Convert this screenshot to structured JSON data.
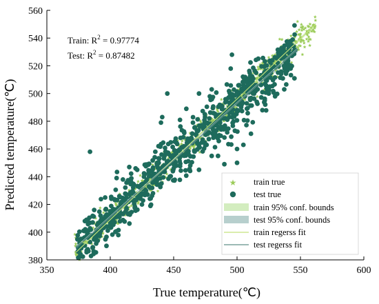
{
  "chart_data": {
    "type": "scatter",
    "xlabel": "True temperature(℃)",
    "ylabel": "Predicted temperature(℃)",
    "xlim": [
      350,
      600
    ],
    "ylim": [
      380,
      560
    ],
    "xticks": [
      350,
      400,
      450,
      500,
      550,
      600
    ],
    "yticks": [
      380,
      400,
      420,
      440,
      460,
      480,
      500,
      520,
      540,
      560
    ],
    "grid": false,
    "legend_position": "bottom-right",
    "annotations": {
      "train_r2_prefix": "Train: R",
      "train_r2_value": " = 0.97774",
      "test_r2_prefix": "Test: R",
      "test_r2_value": " = 0.87482",
      "superscript": "2"
    },
    "legend": {
      "train_true": "train true",
      "test_true": "test true",
      "train_bounds": "train 95% conf. bounds",
      "test_bounds": "test 95% conf. bounds",
      "train_fit": "train regerss fit",
      "test_fit": "test regerss fit"
    },
    "series": [
      {
        "name": "train true",
        "marker": "star",
        "color": "#9ccc5a",
        "r2": 0.97774,
        "x_range": [
          372,
          562
        ],
        "noise_sd": 5,
        "points": [
          [
            375,
            386
          ],
          [
            378,
            389
          ],
          [
            382,
            392
          ],
          [
            386,
            395
          ],
          [
            390,
            400
          ],
          [
            395,
            404
          ],
          [
            400,
            405
          ],
          [
            405,
            410
          ],
          [
            410,
            414
          ],
          [
            415,
            418
          ],
          [
            420,
            420
          ],
          [
            425,
            426
          ],
          [
            430,
            428
          ],
          [
            435,
            434
          ],
          [
            440,
            438
          ],
          [
            445,
            447
          ],
          [
            450,
            450
          ],
          [
            455,
            452
          ],
          [
            460,
            462
          ],
          [
            465,
            466
          ],
          [
            470,
            468
          ],
          [
            475,
            474
          ],
          [
            480,
            482
          ],
          [
            485,
            487
          ],
          [
            490,
            488
          ],
          [
            495,
            494
          ],
          [
            500,
            502
          ],
          [
            505,
            507
          ],
          [
            510,
            509
          ],
          [
            515,
            514
          ],
          [
            520,
            522
          ],
          [
            525,
            526
          ],
          [
            530,
            528
          ],
          [
            535,
            534
          ],
          [
            540,
            537
          ],
          [
            545,
            543
          ],
          [
            550,
            543
          ],
          [
            555,
            545
          ],
          [
            560,
            546
          ]
        ]
      },
      {
        "name": "test true",
        "marker": "circle",
        "color": "#1e6b5c",
        "r2": 0.87482,
        "x_range": [
          374,
          546
        ],
        "noise_sd": 9,
        "points": [
          [
            384,
            458
          ],
          [
            380,
            408
          ],
          [
            392,
            404
          ],
          [
            396,
            425
          ],
          [
            405,
            439
          ],
          [
            420,
            446
          ],
          [
            440,
            479
          ],
          [
            441,
            483
          ],
          [
            455,
            481
          ],
          [
            470,
            445
          ],
          [
            480,
            455
          ],
          [
            476,
            463
          ],
          [
            490,
            449
          ],
          [
            500,
            450
          ],
          [
            511,
            471
          ],
          [
            520,
            488
          ],
          [
            515,
            515
          ],
          [
            520,
            501
          ],
          [
            540,
            522
          ],
          [
            530,
            498
          ],
          [
            445,
            500
          ],
          [
            470,
            500
          ],
          [
            496,
            528
          ],
          [
            485,
            455
          ],
          [
            500,
            460
          ],
          [
            460,
            489
          ],
          [
            505,
            463
          ],
          [
            410,
            438
          ],
          [
            415,
            447
          ],
          [
            425,
            420
          ],
          [
            450,
            446
          ],
          [
            480,
            503
          ],
          [
            495,
            518
          ],
          [
            510,
            515
          ],
          [
            525,
            500
          ]
        ]
      }
    ],
    "fits": {
      "train": {
        "x": [
          373,
          562
        ],
        "y": [
          385.5,
          550
        ]
      },
      "test": {
        "x": [
          373,
          548
        ],
        "y": [
          388.5,
          532
        ]
      }
    },
    "conf_bounds": {
      "train_half_width": 1.2,
      "test_half_width": 2.0
    },
    "colors": {
      "train_marker": "#9ccc5a",
      "train_band": "#d3edbf",
      "train_fit": "#c4e27a",
      "test_marker": "#1e6b5c",
      "test_band": "#b7cfcd",
      "test_fit": "#5f8f88",
      "axis": "#000000"
    }
  }
}
